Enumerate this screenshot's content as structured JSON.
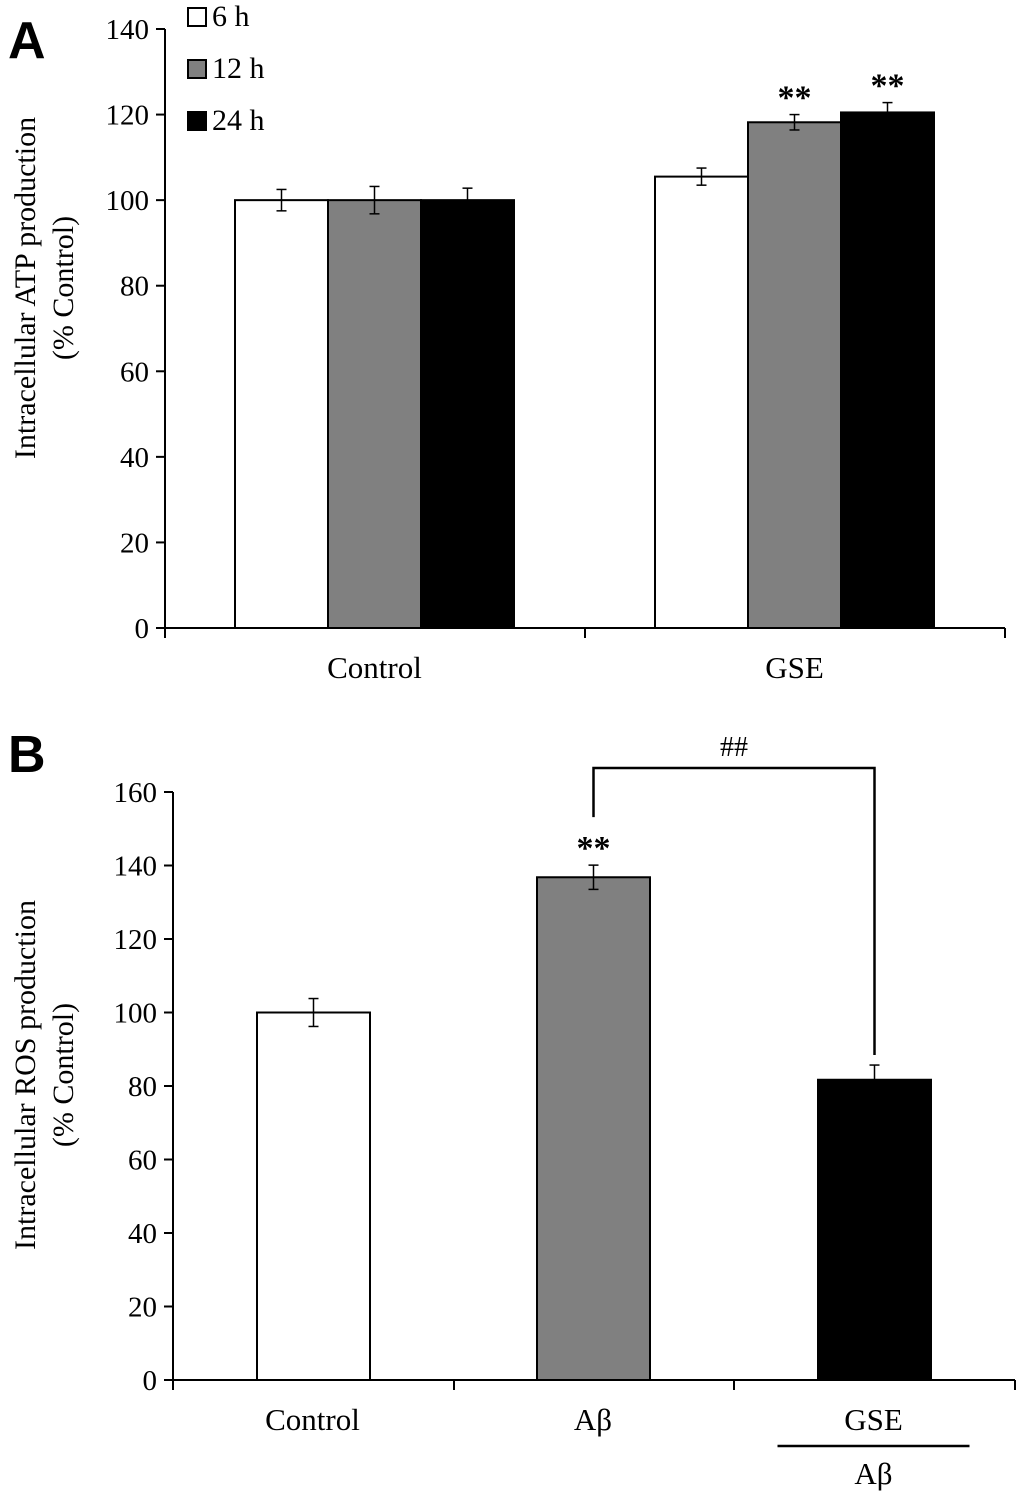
{
  "chart_data": [
    {
      "panel": "A",
      "type": "bar",
      "categories": [
        "Control",
        "GSE"
      ],
      "series": [
        {
          "name": "6 h",
          "color": "#ffffff",
          "values": [
            100,
            105.5
          ],
          "errors": [
            2.5,
            2
          ],
          "annotations": [
            "",
            ""
          ]
        },
        {
          "name": "12 h",
          "color": "#808080",
          "values": [
            100,
            118.2
          ],
          "errors": [
            3.2,
            1.8
          ],
          "annotations": [
            "",
            "**"
          ]
        },
        {
          "name": "24 h",
          "color": "#000000",
          "values": [
            100,
            120.5
          ],
          "errors": [
            2.8,
            2.3
          ],
          "annotations": [
            "",
            "**"
          ]
        }
      ],
      "ylabel_lines": [
        "Intracellular ATP production",
        "(% Control)"
      ],
      "ylim": [
        0,
        140
      ],
      "yticks": [
        0,
        20,
        40,
        60,
        80,
        100,
        120,
        140
      ],
      "legend": {
        "placement": "top-left",
        "labels": [
          "6 h",
          "12 h",
          "24 h"
        ]
      }
    },
    {
      "panel": "B",
      "type": "bar",
      "categories": [
        "Control",
        "Aβ",
        "GSE"
      ],
      "category_sublabels": [
        "",
        "",
        "Aβ"
      ],
      "values": [
        100,
        136.8,
        81.7
      ],
      "errors": [
        3.8,
        3.3,
        4
      ],
      "colors": [
        "#ffffff",
        "#808080",
        "#000000"
      ],
      "annotations": [
        "",
        "**",
        ""
      ],
      "bracket": {
        "from": 1,
        "to": 2,
        "label": "##"
      },
      "ylabel_lines": [
        "Intracellular ROS production",
        "(% Control)"
      ],
      "ylim": [
        0,
        160
      ],
      "yticks": [
        0,
        20,
        40,
        60,
        80,
        100,
        120,
        140,
        160
      ]
    }
  ]
}
